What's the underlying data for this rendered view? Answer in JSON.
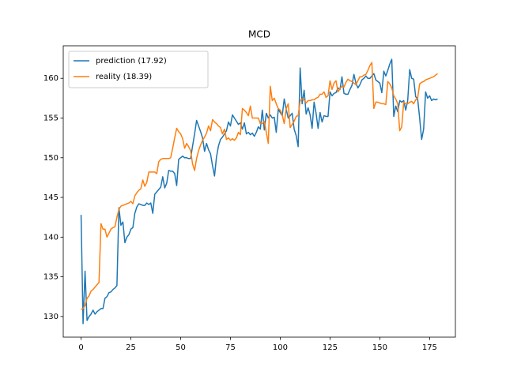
{
  "chart_data": {
    "type": "line",
    "title": "MCD",
    "x": [
      0,
      1,
      2,
      3,
      4,
      5,
      6,
      7,
      8,
      9,
      10,
      11,
      12,
      13,
      14,
      15,
      16,
      17,
      18,
      19,
      20,
      21,
      22,
      23,
      24,
      25,
      26,
      27,
      28,
      29,
      30,
      31,
      32,
      33,
      34,
      35,
      36,
      37,
      38,
      39,
      40,
      41,
      42,
      43,
      44,
      45,
      46,
      47,
      48,
      49,
      50,
      51,
      52,
      53,
      54,
      55,
      56,
      57,
      58,
      59,
      60,
      61,
      62,
      63,
      64,
      65,
      66,
      67,
      68,
      69,
      70,
      71,
      72,
      73,
      74,
      75,
      76,
      77,
      78,
      79,
      80,
      81,
      82,
      83,
      84,
      85,
      86,
      87,
      88,
      89,
      90,
      91,
      92,
      93,
      94,
      95,
      96,
      97,
      98,
      99,
      100,
      101,
      102,
      103,
      104,
      105,
      106,
      107,
      108,
      109,
      110,
      111,
      112,
      113,
      114,
      115,
      116,
      117,
      118,
      119,
      120,
      121,
      122,
      123,
      124,
      125,
      126,
      127,
      128,
      129,
      130,
      131,
      132,
      133,
      134,
      135,
      136,
      137,
      138,
      139,
      140,
      141,
      142,
      143,
      144,
      145,
      146,
      147,
      148,
      149,
      150,
      151,
      152,
      153,
      154,
      155,
      156,
      157,
      158,
      159,
      160,
      161,
      162,
      163,
      164,
      165,
      166,
      167,
      168,
      169,
      170,
      171,
      172,
      173,
      174,
      175,
      176,
      177,
      178,
      179
    ],
    "series": [
      {
        "name": "prediction (17.92)",
        "color": "#1f77b4",
        "values": [
          142.8,
          129.1,
          135.7,
          129.5,
          130.0,
          130.3,
          130.8,
          130.3,
          130.6,
          130.8,
          131.0,
          131.0,
          132.3,
          132.5,
          133.0,
          133.1,
          133.4,
          133.6,
          133.9,
          143.7,
          141.5,
          141.9,
          139.3,
          140.0,
          140.3,
          141.0,
          141.2,
          143.0,
          143.8,
          144.2,
          144.1,
          144.0,
          144.0,
          144.3,
          144.1,
          144.3,
          143.0,
          145.4,
          145.7,
          146.0,
          146.3,
          147.6,
          146.2,
          146.8,
          148.4,
          148.3,
          148.3,
          148.0,
          146.5,
          149.8,
          150.0,
          150.2,
          150.0,
          150.0,
          149.9,
          149.9,
          151.5,
          153.0,
          154.7,
          154.0,
          153.3,
          152.5,
          150.8,
          151.8,
          151.0,
          150.5,
          149.0,
          147.7,
          150.1,
          151.5,
          152.3,
          152.6,
          153.0,
          153.4,
          154.5,
          154.0,
          155.4,
          155.0,
          154.6,
          154.2,
          154.4,
          153.6,
          154.4,
          153.0,
          153.2,
          152.9,
          153.1,
          152.7,
          153.2,
          153.9,
          153.6,
          156.0,
          153.5,
          155.6,
          155.0,
          155.4,
          155.0,
          155.1,
          153.2,
          156.1,
          155.7,
          155.3,
          157.4,
          156.1,
          155.0,
          155.3,
          155.6,
          153.6,
          152.8,
          151.4,
          161.3,
          156.8,
          158.5,
          155.5,
          156.3,
          155.4,
          153.7,
          157.0,
          155.6,
          153.7,
          155.7,
          154.5,
          155.3,
          155.2,
          155.2,
          158.3,
          157.8,
          158.1,
          158.2,
          158.8,
          158.6,
          160.2,
          158.1,
          158.0,
          158.0,
          158.6,
          159.1,
          160.5,
          159.4,
          158.8,
          159.2,
          159.8,
          160.0,
          160.3,
          160.0,
          160.0,
          160.3,
          160.6,
          159.8,
          159.6,
          159.4,
          158.2,
          160.9,
          160.3,
          161.0,
          161.8,
          162.4,
          155.2,
          156.5,
          155.8,
          157.2,
          157.0,
          157.2,
          156.0,
          157.2,
          161.1,
          160.0,
          159.9,
          157.7,
          157.4,
          155.0,
          152.3,
          153.6,
          158.3,
          157.5,
          157.8,
          157.2,
          157.4,
          157.3,
          157.4
        ]
      },
      {
        "name": "reality (18.39)",
        "color": "#ff7f0e",
        "values": [
          130.9,
          131.0,
          131.4,
          132.3,
          132.6,
          133.2,
          133.4,
          133.7,
          134.0,
          134.3,
          141.7,
          141.0,
          141.0,
          140.0,
          140.5,
          141.0,
          141.2,
          141.3,
          142.5,
          143.5,
          143.9,
          144.0,
          144.1,
          144.2,
          144.3,
          144.5,
          144.2,
          145.2,
          145.6,
          145.9,
          146.1,
          147.2,
          146.4,
          146.9,
          148.2,
          148.2,
          148.2,
          148.2,
          148.0,
          149.5,
          149.8,
          149.9,
          149.9,
          149.9,
          149.9,
          150.0,
          151.2,
          152.5,
          153.7,
          153.3,
          153.0,
          152.4,
          151.2,
          151.8,
          151.4,
          150.9,
          149.2,
          148.4,
          149.9,
          150.9,
          151.6,
          152.2,
          152.6,
          153.1,
          154.0,
          153.4,
          154.8,
          154.5,
          154.3,
          154.0,
          153.8,
          153.0,
          153.6,
          152.3,
          152.5,
          152.2,
          152.4,
          152.2,
          152.5,
          153.2,
          152.9,
          156.2,
          156.0,
          155.7,
          155.3,
          156.5,
          155.0,
          155.0,
          155.0,
          155.0,
          154.3,
          154.3,
          154.6,
          153.2,
          151.8,
          159.0,
          157.2,
          157.5,
          156.8,
          156.2,
          156.0,
          155.4,
          154.3,
          156.2,
          156.8,
          153.8,
          154.2,
          154.6,
          155.2,
          155.3,
          157.2,
          157.4,
          157.3,
          156.9,
          157.2,
          157.2,
          157.3,
          157.3,
          157.5,
          157.6,
          158.0,
          158.0,
          158.3,
          157.6,
          157.8,
          159.7,
          158.6,
          159.4,
          159.7,
          158.3,
          158.7,
          159.0,
          158.9,
          159.5,
          159.9,
          159.7,
          159.6,
          159.4,
          159.2,
          159.7,
          160.2,
          160.2,
          160.4,
          160.5,
          161.0,
          161.6,
          162.0,
          156.2,
          157.0,
          157.0,
          156.9,
          156.8,
          156.8,
          156.7,
          159.6,
          159.3,
          158.8,
          157.8,
          157.4,
          156.8,
          153.4,
          153.9,
          157.0,
          156.8,
          156.8,
          157.0,
          157.1,
          156.8,
          157.3,
          157.5,
          159.3,
          159.5,
          159.6,
          159.8,
          159.9,
          160.0,
          160.1,
          160.2,
          160.4,
          160.6
        ]
      }
    ],
    "xlim": [
      -8.95,
      187.95
    ],
    "xticks": [
      0,
      25,
      50,
      75,
      100,
      125,
      150,
      175
    ],
    "ylim": [
      127.4,
      164.1
    ],
    "yticks": [
      130,
      135,
      140,
      145,
      150,
      155,
      160
    ],
    "legend": "upper left"
  }
}
